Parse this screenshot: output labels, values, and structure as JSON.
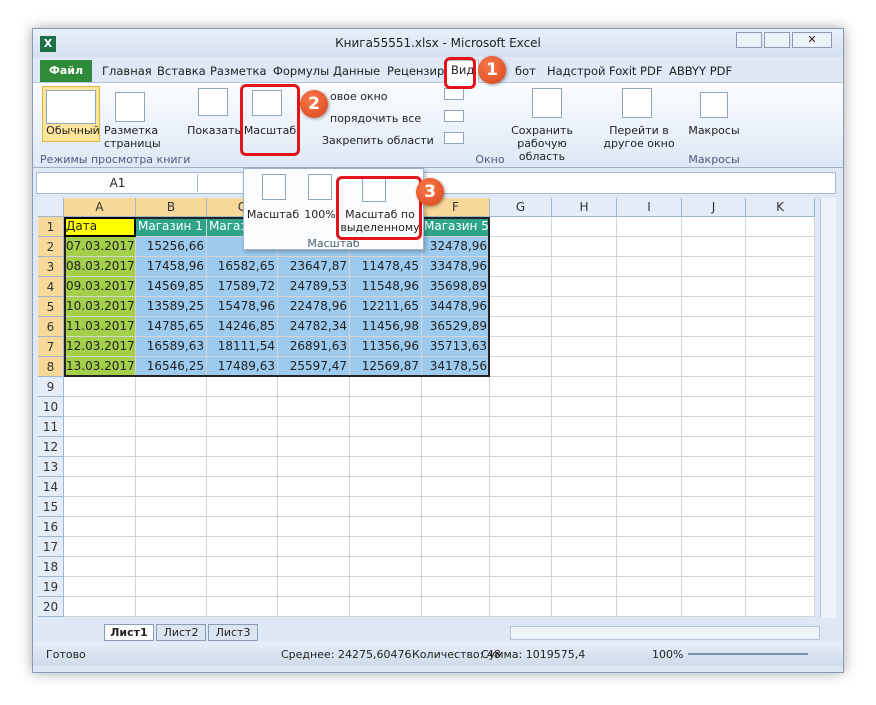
{
  "title": "Книга55551.xlsx - Microsoft Excel",
  "tabs": [
    "Файл",
    "Главная",
    "Вставка",
    "Разметка",
    "Формулы",
    "Данные",
    "Рецензир",
    "Вид",
    "бот",
    "Надстрой",
    "Foxit PDF",
    "ABBYY PDF"
  ],
  "ribbon": {
    "buttons": [
      "Обычный",
      "Разметка страницы",
      "Показать",
      "Масштаб",
      "овое окно",
      "порядочить все",
      "Закрепить области",
      "Сохранить рабочую область",
      "Перейти в другое окно",
      "Макросы"
    ],
    "groups": [
      "Режимы просмотра книги",
      "Окно",
      "Макросы"
    ]
  },
  "zoom_menu": {
    "items": [
      "Масштаб",
      "100%",
      "Масштаб по выделенному"
    ],
    "label": "Масштаб"
  },
  "callouts": [
    "1",
    "2",
    "3"
  ],
  "name_box": "A1",
  "columns": [
    "A",
    "B",
    "C",
    "D",
    "E",
    "F",
    "G",
    "H",
    "I",
    "J",
    "K"
  ],
  "rows": [
    1,
    2,
    3,
    4,
    5,
    6,
    7,
    8,
    9,
    10,
    11,
    12,
    13,
    14,
    15,
    16,
    17,
    18,
    19,
    20
  ],
  "cells": [
    [
      "Дата",
      "Магазин 1",
      "Магазин 2",
      null,
      null,
      "Магазин 5"
    ],
    [
      "07.03.2017",
      "15256,66",
      null,
      null,
      null,
      "32478,96"
    ],
    [
      "08.03.2017",
      "17458,96",
      "16582,65",
      "23647,87",
      "11478,45",
      "33478,96"
    ],
    [
      "09.03.2017",
      "14569,85",
      "17589,72",
      "24789,53",
      "11548,96",
      "35698,89"
    ],
    [
      "10.03.2017",
      "13589,25",
      "15478,96",
      "22478,96",
      "12211,65",
      "34478,96"
    ],
    [
      "11.03.2017",
      "14785,65",
      "14246,85",
      "24782,34",
      "11456,98",
      "36529,89"
    ],
    [
      "12.03.2017",
      "16589,63",
      "18111,54",
      "26891,63",
      "11356,96",
      "35713,63"
    ],
    [
      "13.03.2017",
      "16546,25",
      "17489,63",
      "25597,47",
      "12569,87",
      "34178,56"
    ]
  ],
  "sheets": [
    "Лист1",
    "Лист2",
    "Лист3"
  ],
  "status": {
    "ready": "Готово",
    "average": "Среднее: 24275,60476",
    "count": "Количество: 48",
    "sum": "Сумма: 1019575,4",
    "zoom": "100%"
  }
}
